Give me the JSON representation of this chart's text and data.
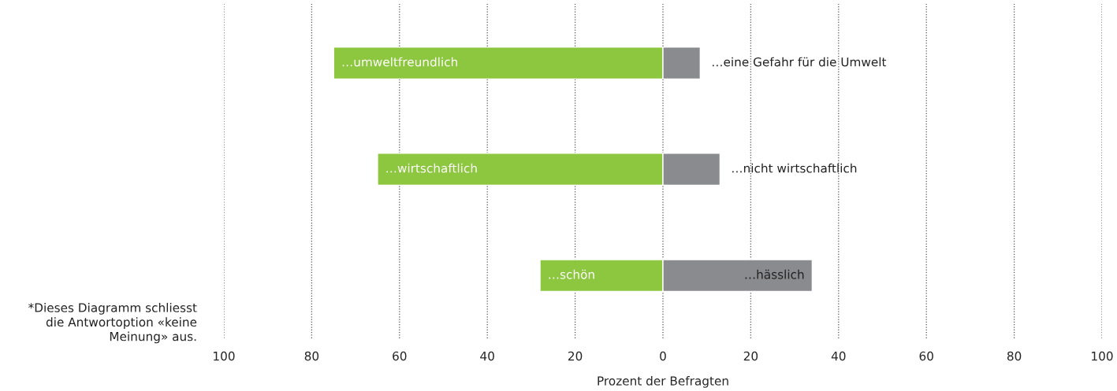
{
  "chart_data": {
    "type": "bar",
    "orientation": "horizontal",
    "xlabel": "Prozent der Befragten",
    "categories": [
      "…umweltfreundlich",
      "…wirtschaftlich",
      "…schön"
    ],
    "series": [
      {
        "color": "#8dc63f",
        "values": [
          -75,
          -65,
          -28
        ]
      },
      {
        "color": "#8a8b8f",
        "values": [
          8.5,
          13,
          34
        ]
      }
    ],
    "xlim": [
      -100,
      100
    ],
    "xticks": [
      {
        "value": -100,
        "label": "100"
      },
      {
        "value": -80,
        "label": "80"
      },
      {
        "value": -60,
        "label": "60"
      },
      {
        "value": -40,
        "label": "40"
      },
      {
        "value": -20,
        "label": "20"
      },
      0,
      20,
      40,
      60,
      80,
      100
    ],
    "grid": "x",
    "annotations": [
      {
        "text": "…eine Gefahr für die Umwelt",
        "x": 8.5,
        "y": "…umweltfreundlich"
      },
      {
        "text": "…nicht wirtschaftlich",
        "x": 13,
        "y": "…wirtschaftlich"
      },
      {
        "text": "…hässlich",
        "x": 34,
        "y": "…schön"
      },
      "*Dieses Diagramm schliesst\ndie Antwortoption «keine\nMeinung» aus."
    ],
    "stacked": true
  }
}
